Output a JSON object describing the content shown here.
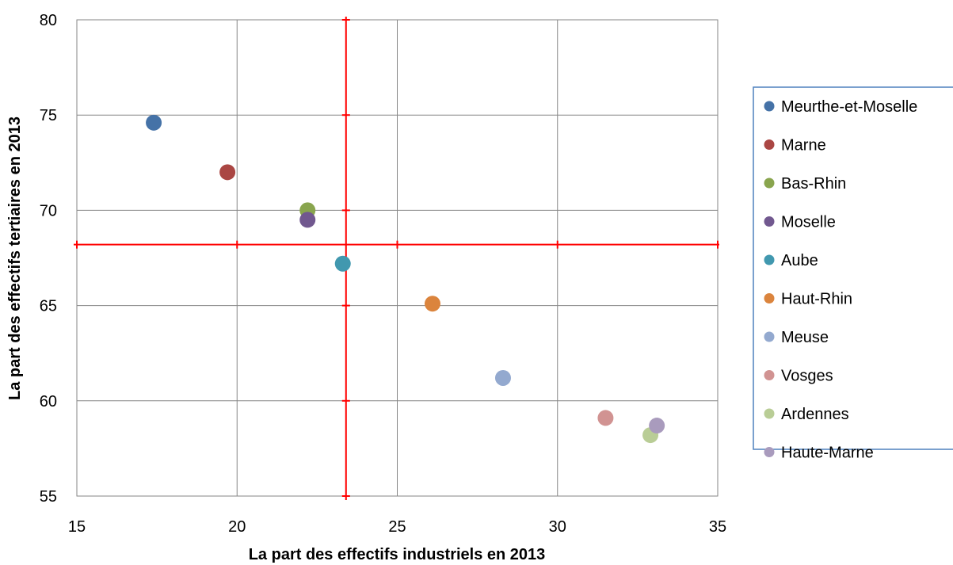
{
  "chart_data": {
    "type": "scatter",
    "xlabel": "La part des effectifs industriels en 2013",
    "ylabel": "La part des effectifs tertiaires en 2013",
    "xlim": [
      15,
      35
    ],
    "ylim": [
      55,
      80
    ],
    "xticks": [
      "15",
      "20",
      "25",
      "30",
      "35"
    ],
    "yticks": [
      "55",
      "60",
      "65",
      "70",
      "75",
      "80"
    ],
    "grid": true,
    "legend_position": "right",
    "reference_lines": {
      "x": 23.4,
      "y": 68.2,
      "color": "#ff0000"
    },
    "series": [
      {
        "name": "Meurthe-et-Moselle",
        "color": "#4572a7",
        "points": [
          [
            17.4,
            74.6
          ]
        ]
      },
      {
        "name": "Marne",
        "color": "#aa4643",
        "points": [
          [
            19.7,
            72.0
          ]
        ]
      },
      {
        "name": "Bas-Rhin",
        "color": "#89a54e",
        "points": [
          [
            22.2,
            70.0
          ]
        ]
      },
      {
        "name": "Moselle",
        "color": "#71588f",
        "points": [
          [
            22.2,
            69.5
          ]
        ]
      },
      {
        "name": "Aube",
        "color": "#4198af",
        "points": [
          [
            23.3,
            67.2
          ]
        ]
      },
      {
        "name": "Haut-Rhin",
        "color": "#db843d",
        "points": [
          [
            26.1,
            65.1
          ]
        ]
      },
      {
        "name": "Meuse",
        "color": "#93a9cf",
        "points": [
          [
            28.3,
            61.2
          ]
        ]
      },
      {
        "name": "Vosges",
        "color": "#d19392",
        "points": [
          [
            31.5,
            59.1
          ]
        ]
      },
      {
        "name": "Ardennes",
        "color": "#b9cd96",
        "points": [
          [
            32.9,
            58.2
          ]
        ]
      },
      {
        "name": "Haute-Marne",
        "color": "#a99bbd",
        "points": [
          [
            33.1,
            58.7
          ]
        ]
      }
    ]
  }
}
